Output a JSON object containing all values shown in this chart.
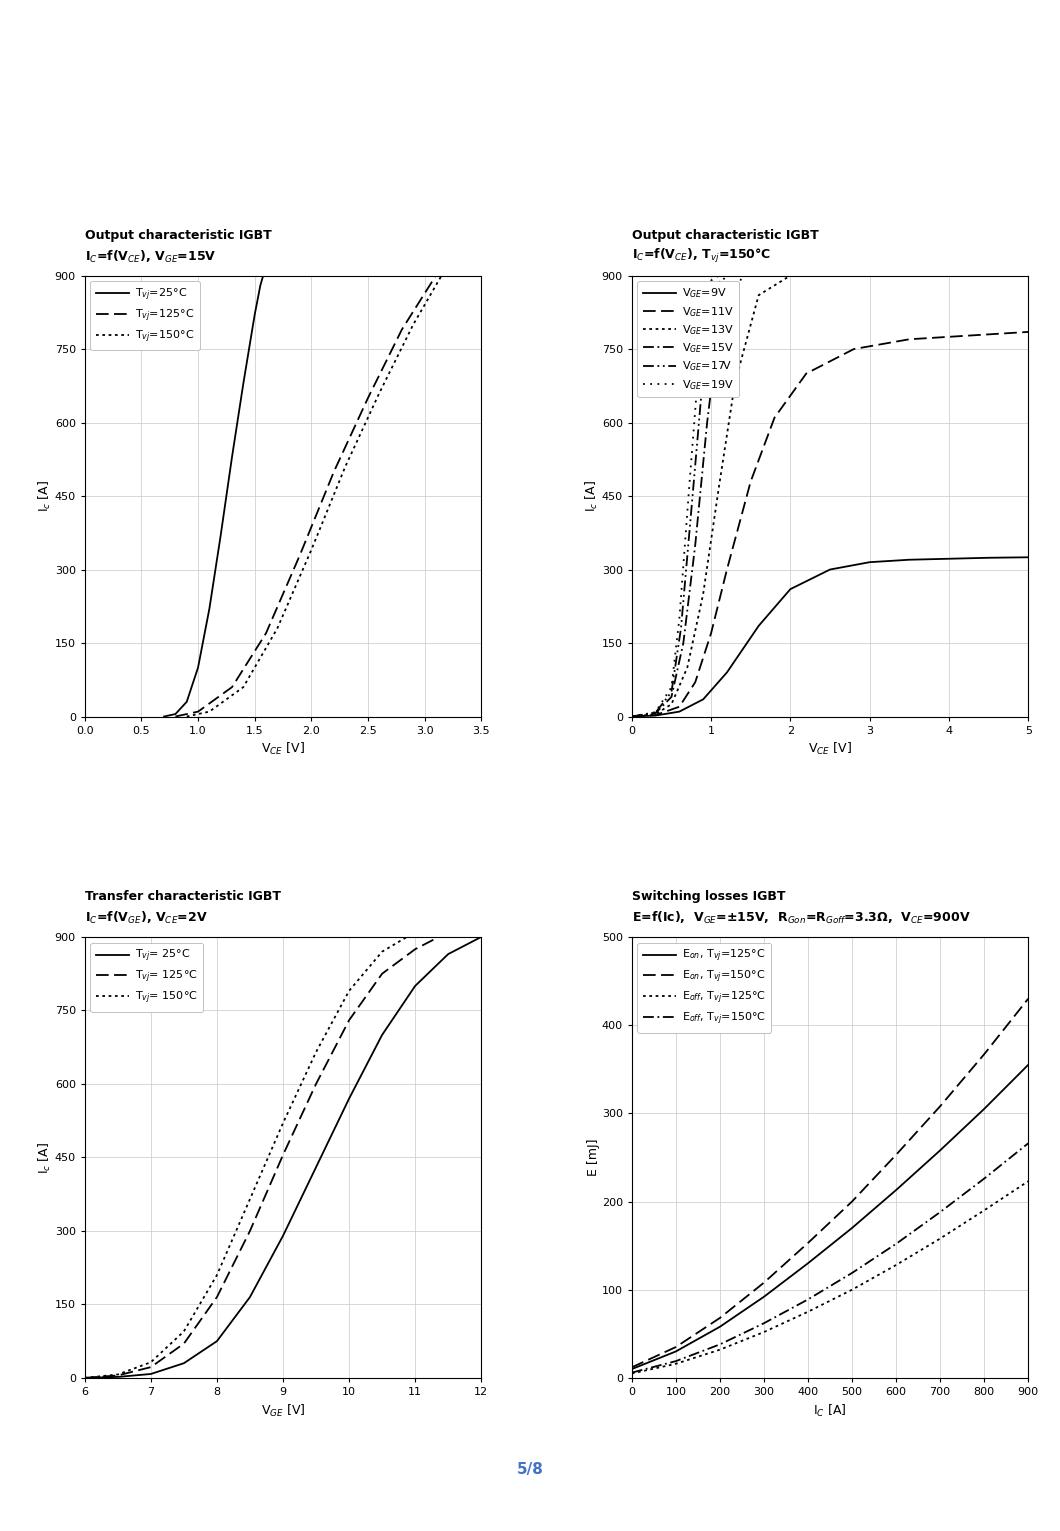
{
  "fig_width": 10.6,
  "fig_height": 15.31,
  "background_color": "#ffffff",
  "page_number": "5/8",
  "plots": [
    {
      "title_line1": "Output characteristic IGBT",
      "title_line2": "I$_C$=f(V$_{CE}$), V$_{GE}$=15V",
      "xlabel": "V$_{CE}$ [V]",
      "ylabel": "I$_c$ [A]",
      "xlim": [
        0.0,
        3.5
      ],
      "ylim": [
        0,
        900
      ],
      "xticks": [
        0.0,
        0.5,
        1.0,
        1.5,
        2.0,
        2.5,
        3.0,
        3.5
      ],
      "yticks": [
        0,
        150,
        300,
        450,
        600,
        750,
        900
      ],
      "curves": [
        {
          "label": "T$_{vj}$=25°C",
          "style": "solid",
          "color": "#000000",
          "x": [
            0.7,
            0.8,
            0.9,
            1.0,
            1.1,
            1.2,
            1.3,
            1.4,
            1.5,
            1.55,
            1.6
          ],
          "y": [
            0,
            5,
            30,
            100,
            220,
            370,
            530,
            680,
            820,
            880,
            920
          ]
        },
        {
          "label": "T$_{vj}$=125°C",
          "style": "dashed",
          "color": "#000000",
          "x": [
            0.8,
            1.0,
            1.3,
            1.6,
            1.9,
            2.2,
            2.5,
            2.8,
            3.1
          ],
          "y": [
            0,
            10,
            60,
            170,
            330,
            500,
            650,
            790,
            900
          ]
        },
        {
          "label": "T$_{vj}$=150°C",
          "style": "dotted",
          "color": "#000000",
          "x": [
            0.9,
            1.1,
            1.4,
            1.7,
            2.0,
            2.3,
            2.6,
            2.9,
            3.15
          ],
          "y": [
            0,
            10,
            60,
            180,
            340,
            510,
            660,
            800,
            900
          ]
        }
      ]
    },
    {
      "title_line1": "Output characteristic IGBT",
      "title_line2": "I$_C$=f(V$_{CE}$), T$_{vj}$=150°C",
      "xlabel": "V$_{CE}$ [V]",
      "ylabel": "I$_c$ [A]",
      "xlim": [
        0,
        5
      ],
      "ylim": [
        0,
        900
      ],
      "xticks": [
        0,
        1,
        2,
        3,
        4,
        5
      ],
      "yticks": [
        0,
        150,
        300,
        450,
        600,
        750,
        900
      ],
      "curves": [
        {
          "label": "V$_{GE}$=9V",
          "style": "solid",
          "color": "#000000",
          "x": [
            0,
            0.3,
            0.6,
            0.9,
            1.2,
            1.6,
            2.0,
            2.5,
            3.0,
            3.5,
            4.0,
            4.5,
            5.0
          ],
          "y": [
            0,
            2,
            10,
            35,
            90,
            185,
            260,
            300,
            315,
            320,
            322,
            324,
            325
          ]
        },
        {
          "label": "V$_{GE}$=11V",
          "style": "dashed",
          "color": "#000000",
          "x": [
            0,
            0.3,
            0.6,
            0.8,
            1.0,
            1.2,
            1.5,
            1.8,
            2.2,
            2.8,
            3.5,
            4.5,
            5.0
          ],
          "y": [
            0,
            3,
            20,
            70,
            170,
            300,
            480,
            610,
            700,
            750,
            770,
            780,
            785
          ]
        },
        {
          "label": "V$_{GE}$=13V",
          "style": "dotted",
          "color": "#000000",
          "x": [
            0,
            0.3,
            0.5,
            0.7,
            0.9,
            1.1,
            1.3,
            1.6,
            2.0,
            2.5
          ],
          "y": [
            0,
            5,
            25,
            100,
            250,
            470,
            680,
            860,
            900,
            910
          ]
        },
        {
          "label": "V$_{GE}$=15V",
          "style": "dashdot",
          "color": "#000000",
          "x": [
            0,
            0.3,
            0.5,
            0.65,
            0.8,
            0.95,
            1.1,
            1.4,
            1.8
          ],
          "y": [
            0,
            7,
            40,
            150,
            350,
            600,
            800,
            900,
            910
          ]
        },
        {
          "label": "V$_{GE}$=17V",
          "style": "dashdotdot",
          "color": "#000000",
          "x": [
            0,
            0.3,
            0.5,
            0.62,
            0.75,
            0.9,
            1.05,
            1.3
          ],
          "y": [
            0,
            8,
            50,
            180,
            420,
            700,
            880,
            910
          ]
        },
        {
          "label": "V$_{GE}$=19V",
          "style": "loosely dotted",
          "color": "#000000",
          "x": [
            0,
            0.3,
            0.5,
            0.6,
            0.72,
            0.85,
            1.0,
            1.2
          ],
          "y": [
            0,
            9,
            60,
            200,
            460,
            730,
            890,
            910
          ]
        }
      ]
    },
    {
      "title_line1": "Transfer characteristic IGBT",
      "title_line2": "I$_C$=f(V$_{GE}$), V$_{CE}$=2V",
      "xlabel": "V$_{GE}$ [V]",
      "ylabel": "I$_c$ [A]",
      "xlim": [
        6,
        12
      ],
      "ylim": [
        0,
        900
      ],
      "xticks": [
        6,
        7,
        8,
        9,
        10,
        11,
        12
      ],
      "yticks": [
        0,
        150,
        300,
        450,
        600,
        750,
        900
      ],
      "curves": [
        {
          "label": "T$_{vj}$= 25°C",
          "style": "solid",
          "color": "#000000",
          "x": [
            6.0,
            6.5,
            7.0,
            7.5,
            8.0,
            8.5,
            9.0,
            9.5,
            10.0,
            10.5,
            11.0,
            11.5,
            12.0
          ],
          "y": [
            0,
            2,
            8,
            30,
            75,
            165,
            290,
            430,
            570,
            700,
            800,
            865,
            900
          ]
        },
        {
          "label": "T$_{vj}$= 125°C",
          "style": "dashed",
          "color": "#000000",
          "x": [
            6.0,
            6.5,
            7.0,
            7.5,
            8.0,
            8.5,
            9.0,
            9.5,
            10.0,
            10.5,
            11.0,
            11.5,
            12.0
          ],
          "y": [
            0,
            5,
            22,
            70,
            165,
            300,
            455,
            600,
            730,
            825,
            875,
            910,
            930
          ]
        },
        {
          "label": "T$_{vj}$= 150°C",
          "style": "dotted",
          "color": "#000000",
          "x": [
            6.0,
            6.5,
            7.0,
            7.5,
            8.0,
            8.5,
            9.0,
            9.5,
            10.0,
            10.5,
            11.0,
            11.5,
            12.0
          ],
          "y": [
            0,
            7,
            32,
            95,
            210,
            365,
            520,
            665,
            790,
            870,
            910,
            940,
            960
          ]
        }
      ]
    },
    {
      "title_line1": "Switching losses IGBT",
      "title_line2": "E=f(Ic),  V$_{GE}$=±15V,  R$_{Gon}$=R$_{Goff}$=3.3Ω,  V$_{CE}$=900V",
      "xlabel": "I$_C$ [A]",
      "ylabel": "E [mJ]",
      "xlim": [
        0,
        900
      ],
      "ylim": [
        0,
        500
      ],
      "xticks": [
        0,
        100,
        200,
        300,
        400,
        500,
        600,
        700,
        800,
        900
      ],
      "yticks": [
        0,
        100,
        200,
        300,
        400,
        500
      ],
      "curves": [
        {
          "label": "E$_{on}$, T$_{vj}$=125°C",
          "style": "solid",
          "color": "#000000",
          "x": [
            0,
            100,
            200,
            300,
            400,
            500,
            600,
            700,
            800,
            900
          ],
          "y": [
            10,
            30,
            58,
            92,
            130,
            170,
            213,
            258,
            305,
            355
          ]
        },
        {
          "label": "E$_{on}$, T$_{vj}$=150°C",
          "style": "dashed",
          "color": "#000000",
          "x": [
            0,
            100,
            200,
            300,
            400,
            500,
            600,
            700,
            800,
            900
          ],
          "y": [
            12,
            35,
            68,
            108,
            153,
            200,
            253,
            308,
            367,
            430
          ]
        },
        {
          "label": "E$_{off}$, T$_{vj}$=125°C",
          "style": "dotted",
          "color": "#000000",
          "x": [
            0,
            100,
            200,
            300,
            400,
            500,
            600,
            700,
            800,
            900
          ],
          "y": [
            5,
            16,
            32,
            52,
            75,
            100,
            128,
            158,
            190,
            223
          ]
        },
        {
          "label": "E$_{off}$, T$_{vj}$=150°C",
          "style": "dashdot",
          "color": "#000000",
          "x": [
            0,
            100,
            200,
            300,
            400,
            500,
            600,
            700,
            800,
            900
          ],
          "y": [
            6,
            19,
            38,
            62,
            89,
            119,
            152,
            188,
            226,
            266
          ]
        }
      ]
    }
  ],
  "bottom_line_color": "#4472C4",
  "title_fontsize": 9,
  "label_fontsize": 9,
  "tick_fontsize": 8,
  "legend_fontsize": 8
}
